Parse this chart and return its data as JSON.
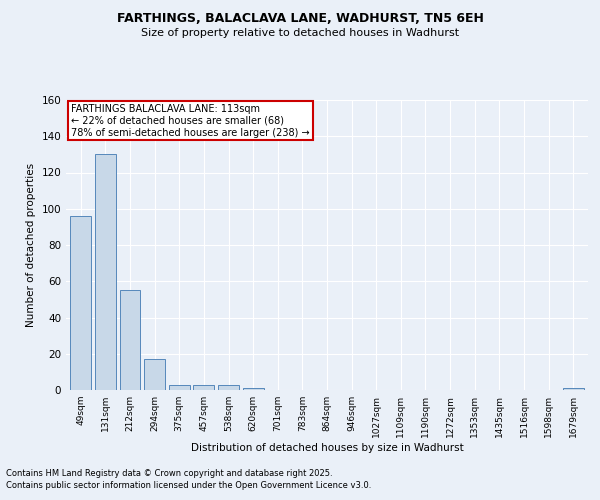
{
  "title1": "FARTHINGS, BALACLAVA LANE, WADHURST, TN5 6EH",
  "title2": "Size of property relative to detached houses in Wadhurst",
  "xlabel": "Distribution of detached houses by size in Wadhurst",
  "ylabel": "Number of detached properties",
  "categories": [
    "49sqm",
    "131sqm",
    "212sqm",
    "294sqm",
    "375sqm",
    "457sqm",
    "538sqm",
    "620sqm",
    "701sqm",
    "783sqm",
    "864sqm",
    "946sqm",
    "1027sqm",
    "1109sqm",
    "1190sqm",
    "1272sqm",
    "1353sqm",
    "1435sqm",
    "1516sqm",
    "1598sqm",
    "1679sqm"
  ],
  "values": [
    96,
    130,
    55,
    17,
    3,
    3,
    3,
    1,
    0,
    0,
    0,
    0,
    0,
    0,
    0,
    0,
    0,
    0,
    0,
    0,
    1
  ],
  "bar_color": "#c8d8e8",
  "bar_edge_color": "#5588bb",
  "annotation_box_text": "FARTHINGS BALACLAVA LANE: 113sqm\n← 22% of detached houses are smaller (68)\n78% of semi-detached houses are larger (238) →",
  "annotation_box_color": "#ffffff",
  "annotation_box_edge_color": "#cc0000",
  "bg_color": "#eaf0f8",
  "grid_color": "#ffffff",
  "footer1": "Contains HM Land Registry data © Crown copyright and database right 2025.",
  "footer2": "Contains public sector information licensed under the Open Government Licence v3.0.",
  "ylim": [
    0,
    160
  ],
  "yticks": [
    0,
    20,
    40,
    60,
    80,
    100,
    120,
    140,
    160
  ]
}
